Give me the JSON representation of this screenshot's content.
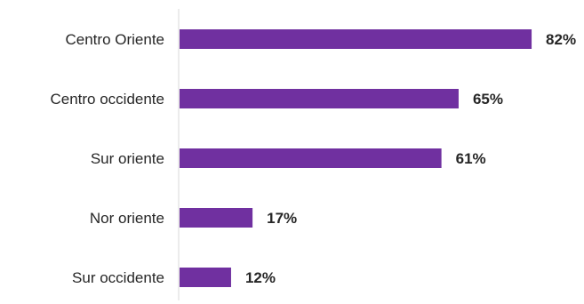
{
  "chart_data": {
    "type": "bar",
    "orientation": "horizontal",
    "categories": [
      "Centro Oriente",
      "Centro occidente",
      "Sur oriente",
      "Nor oriente",
      "Sur occidente"
    ],
    "values": [
      82,
      65,
      61,
      17,
      12
    ],
    "value_labels": [
      "82%",
      "65%",
      "61%",
      "17%",
      "12%"
    ],
    "title": "",
    "xlabel": "",
    "ylabel": "",
    "xlim": [
      0,
      100
    ],
    "grid": false,
    "legend": "none",
    "bar_color": "#7030A0",
    "axis_color": "#D9D9D9"
  }
}
